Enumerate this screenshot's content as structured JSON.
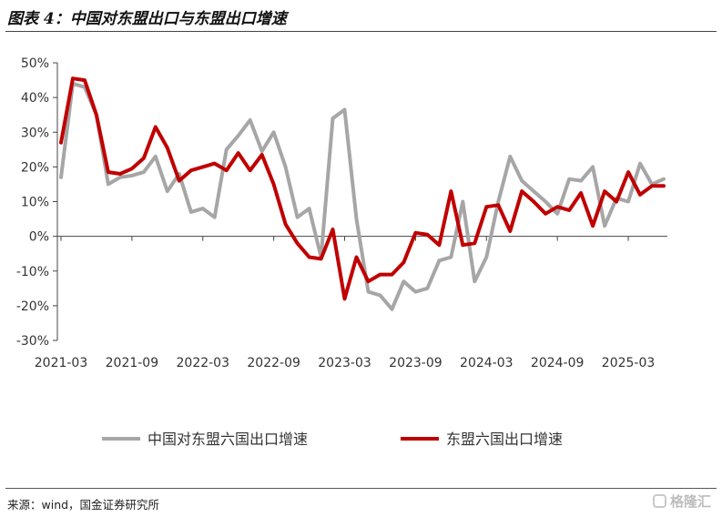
{
  "header": {
    "title": "图表 4：中国对东盟出口与东盟出口增速"
  },
  "footer": {
    "source": "来源：wind，国金证券研究所",
    "watermark": "格隆汇"
  },
  "colors": {
    "series_china": "#a6a6a6",
    "series_asean": "#c00000",
    "axis": "#444444"
  },
  "chart_data": {
    "type": "line",
    "title": "图表 4：中国对东盟出口与东盟出口增速",
    "xlabel": "",
    "ylabel": "",
    "ylim": [
      -30,
      50
    ],
    "yticks": [
      -30,
      -20,
      -10,
      0,
      10,
      20,
      30,
      40,
      50
    ],
    "ytick_labels": [
      "-30%",
      "-20%",
      "-10%",
      "0%",
      "10%",
      "20%",
      "30%",
      "40%",
      "50%"
    ],
    "xtick_labels": [
      {
        "label": "2021-03",
        "index": 0
      },
      {
        "label": "2021-09",
        "index": 6
      },
      {
        "label": "2022-03",
        "index": 12
      },
      {
        "label": "2022-09",
        "index": 18
      },
      {
        "label": "2023-03",
        "index": 24
      },
      {
        "label": "2023-09",
        "index": 30
      },
      {
        "label": "2024-03",
        "index": 36
      },
      {
        "label": "2024-09",
        "index": 42
      },
      {
        "label": "2025-03",
        "index": 48
      }
    ],
    "x": [
      "2021-03",
      "2021-04",
      "2021-05",
      "2021-06",
      "2021-07",
      "2021-08",
      "2021-09",
      "2021-10",
      "2021-11",
      "2021-12",
      "2022-01",
      "2022-02",
      "2022-03",
      "2022-04",
      "2022-05",
      "2022-06",
      "2022-07",
      "2022-08",
      "2022-09",
      "2022-10",
      "2022-11",
      "2022-12",
      "2023-01",
      "2023-02",
      "2023-03",
      "2023-04",
      "2023-05",
      "2023-06",
      "2023-07",
      "2023-08",
      "2023-09",
      "2023-10",
      "2023-11",
      "2023-12",
      "2024-01",
      "2024-02",
      "2024-03",
      "2024-04",
      "2024-05",
      "2024-06",
      "2024-07",
      "2024-08",
      "2024-09",
      "2024-10",
      "2024-11",
      "2024-12",
      "2025-01",
      "2025-02",
      "2025-03",
      "2025-04",
      "2025-05",
      "2025-06"
    ],
    "series": [
      {
        "name": "中国对东盟六国出口增速",
        "color": "#a6a6a6",
        "values": [
          17,
          44,
          43,
          35,
          15,
          17,
          17.5,
          18.5,
          23,
          13,
          18,
          7,
          8,
          5.5,
          25,
          29,
          33.5,
          24.5,
          30,
          20,
          5.5,
          8,
          -6,
          34,
          36.5,
          5,
          -16,
          -17,
          -21,
          -13,
          -16,
          -15,
          -7,
          -6,
          10,
          -13,
          -6,
          10,
          23,
          16,
          13,
          10,
          6.5,
          16.5,
          16,
          20,
          3,
          11,
          10,
          21,
          15,
          16.5
        ]
      },
      {
        "name": "东盟六国出口增速",
        "color": "#c00000",
        "values": [
          27,
          45.5,
          45,
          35,
          18.5,
          18,
          19.5,
          22.5,
          31.5,
          25.5,
          16,
          19,
          20,
          21,
          19,
          24,
          19,
          23.5,
          15,
          3.5,
          -2,
          -6,
          -6.5,
          2,
          -18,
          -6,
          -13,
          -11,
          -11,
          -7.5,
          1,
          0.5,
          -2.5,
          13,
          -2.5,
          -2,
          8.5,
          9,
          1.5,
          13,
          10,
          6.5,
          8.5,
          7.5,
          12.5,
          3,
          13,
          10,
          18.5,
          12,
          14.5,
          14.5
        ]
      }
    ],
    "legend": {
      "placement": "bottom"
    },
    "grid": false
  }
}
